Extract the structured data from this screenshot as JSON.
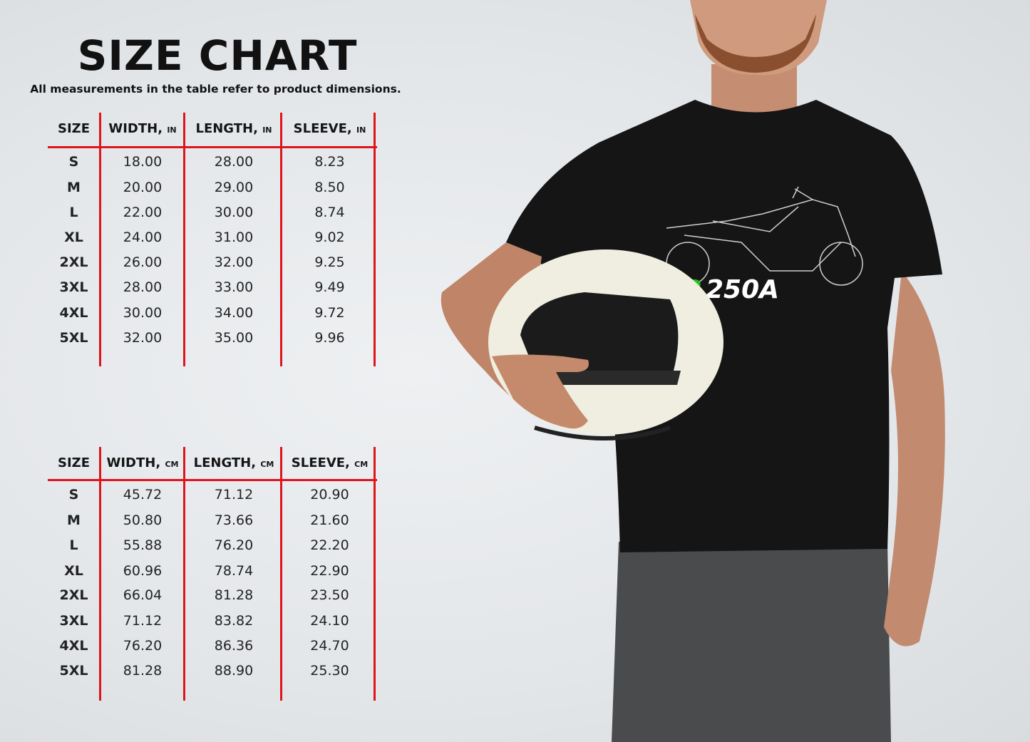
{
  "title": "SIZE CHART",
  "subtitle": "All measurements in the table refer to product dimensions.",
  "tables": [
    {
      "headers": [
        {
          "label": "SIZE",
          "unit": ""
        },
        {
          "label": "WIDTH,",
          "unit": "IN"
        },
        {
          "label": "LENGTH,",
          "unit": "IN"
        },
        {
          "label": "SLEEVE,",
          "unit": "IN"
        }
      ],
      "rows": [
        [
          "S",
          "18.00",
          "28.00",
          "8.23"
        ],
        [
          "M",
          "20.00",
          "29.00",
          "8.50"
        ],
        [
          "L",
          "22.00",
          "30.00",
          "8.74"
        ],
        [
          "XL",
          "24.00",
          "31.00",
          "9.02"
        ],
        [
          "2XL",
          "26.00",
          "32.00",
          "9.25"
        ],
        [
          "3XL",
          "28.00",
          "33.00",
          "9.49"
        ],
        [
          "4XL",
          "30.00",
          "34.00",
          "9.72"
        ],
        [
          "5XL",
          "32.00",
          "35.00",
          "9.96"
        ]
      ]
    },
    {
      "headers": [
        {
          "label": "SIZE",
          "unit": ""
        },
        {
          "label": "WIDTH,",
          "unit": "CM"
        },
        {
          "label": "LENGTH,",
          "unit": "CM"
        },
        {
          "label": "SLEEVE,",
          "unit": "CM"
        }
      ],
      "rows": [
        [
          "S",
          "45.72",
          "71.12",
          "20.90"
        ],
        [
          "M",
          "50.80",
          "73.66",
          "21.60"
        ],
        [
          "L",
          "55.88",
          "76.20",
          "22.20"
        ],
        [
          "XL",
          "60.96",
          "78.74",
          "22.90"
        ],
        [
          "2XL",
          "66.04",
          "81.28",
          "23.50"
        ],
        [
          "3XL",
          "71.12",
          "83.82",
          "24.10"
        ],
        [
          "4XL",
          "76.20",
          "86.36",
          "24.70"
        ],
        [
          "5XL",
          "81.28",
          "88.90",
          "25.30"
        ]
      ]
    }
  ],
  "shirt_print": {
    "text_green": "KR",
    "text_white": "250A",
    "green": "#1fc31a"
  },
  "accent_color": "#e0141b"
}
